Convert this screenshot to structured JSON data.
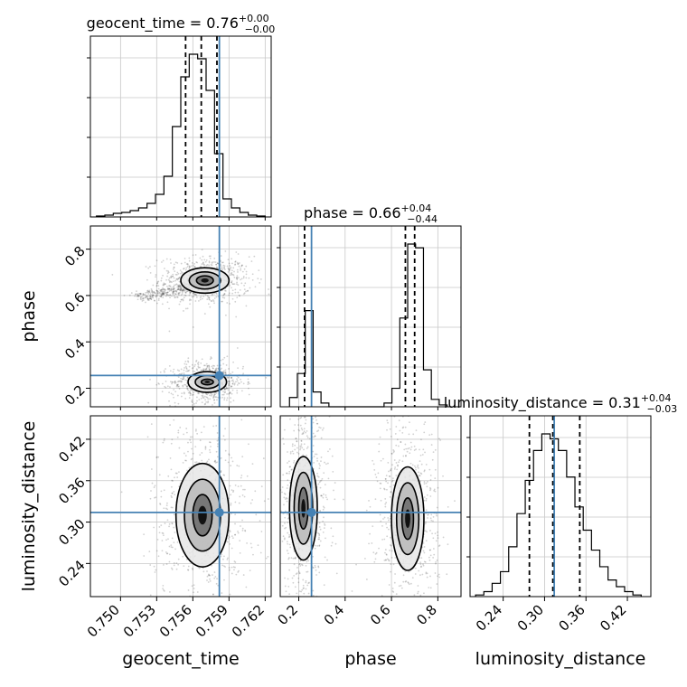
{
  "chart_data": {
    "type": "corner",
    "parameters": [
      "geocent_time",
      "phase",
      "luminosity_distance"
    ],
    "axis_labels": {
      "geocent_time": "geocent_time",
      "phase": "phase",
      "luminosity_distance": "luminosity_distance"
    },
    "ranges": {
      "geocent_time": [
        0.7475,
        0.7625
      ],
      "phase": [
        0.12,
        0.9
      ],
      "luminosity_distance": [
        0.192,
        0.454
      ]
    },
    "ticks": {
      "geocent_time": [
        "0.750",
        "0.753",
        "0.756",
        "0.759",
        "0.762"
      ],
      "phase": [
        "0.2",
        "0.4",
        "0.6",
        "0.8"
      ],
      "luminosity_distance": [
        "0.24",
        "0.30",
        "0.36",
        "0.42"
      ]
    },
    "truths": {
      "geocent_time": 0.7582,
      "phase": 0.255,
      "luminosity_distance": 0.314
    },
    "truth_color": "#4682b4",
    "titles": [
      {
        "param": "geocent_time",
        "text": "geocent_time = 0.76",
        "plus": "+0.00",
        "minus": "−0.00"
      },
      {
        "param": "phase",
        "text": "phase = 0.66",
        "plus": "+0.04",
        "minus": "−0.44"
      },
      {
        "param": "luminosity_distance",
        "text": "luminosity_distance = 0.31",
        "plus": "+0.04",
        "minus": "−0.03"
      }
    ],
    "quantiles": {
      "geocent_time": [
        0.7554,
        0.7567,
        0.758
      ],
      "phase": [
        0.225,
        0.66,
        0.7
      ],
      "luminosity_distance": [
        0.278,
        0.312,
        0.351
      ]
    },
    "histograms": {
      "geocent_time": {
        "edges": [
          0.748,
          0.7487,
          0.7494,
          0.7501,
          0.7508,
          0.7515,
          0.7522,
          0.7529,
          0.7536,
          0.7543,
          0.755,
          0.7557,
          0.7564,
          0.7571,
          0.7578,
          0.7585,
          0.7592,
          0.7599,
          0.7606,
          0.7613,
          0.762
        ],
        "counts": [
          1,
          2,
          4,
          5,
          7,
          10,
          15,
          25,
          45,
          100,
          155,
          180,
          175,
          140,
          70,
          20,
          10,
          5,
          2,
          1
        ]
      },
      "phase": {
        "edges": [
          0.16,
          0.194,
          0.228,
          0.262,
          0.296,
          0.33,
          0.364,
          0.398,
          0.432,
          0.466,
          0.5,
          0.534,
          0.568,
          0.602,
          0.636,
          0.67,
          0.704,
          0.738,
          0.772,
          0.806,
          0.84
        ],
        "counts": [
          5,
          18,
          52,
          8,
          2,
          0,
          0,
          0,
          0,
          0,
          0,
          0,
          2,
          10,
          48,
          88,
          86,
          20,
          4,
          1
        ]
      },
      "luminosity_distance": {
        "edges": [
          0.2,
          0.212,
          0.224,
          0.236,
          0.248,
          0.26,
          0.272,
          0.284,
          0.296,
          0.308,
          0.32,
          0.332,
          0.344,
          0.356,
          0.368,
          0.38,
          0.392,
          0.404,
          0.416,
          0.428,
          0.44
        ],
        "counts": [
          1,
          3,
          8,
          15,
          30,
          50,
          70,
          88,
          98,
          95,
          88,
          72,
          54,
          40,
          28,
          18,
          10,
          6,
          3,
          1
        ]
      }
    },
    "pairs": [
      {
        "x": "geocent_time",
        "y": "phase",
        "modes": [
          {
            "cx": 0.757,
            "cy": 0.665,
            "levels": [
              [
                0.002,
                0.055
              ],
              [
                0.0013,
                0.037
              ],
              [
                0.0007,
                0.02
              ]
            ]
          },
          {
            "cx": 0.7572,
            "cy": 0.227,
            "levels": [
              [
                0.0016,
                0.045
              ],
              [
                0.001,
                0.028
              ],
              [
                0.0005,
                0.012
              ]
            ]
          }
        ],
        "streak": {
          "from": [
            0.7515,
            0.59
          ],
          "to": [
            0.7562,
            0.64
          ]
        }
      },
      {
        "x": "geocent_time",
        "y": "luminosity_distance",
        "modes": [
          {
            "cx": 0.7568,
            "cy": 0.31,
            "levels": [
              [
                0.0022,
                0.075
              ],
              [
                0.0015,
                0.052
              ],
              [
                0.0008,
                0.03
              ]
            ]
          }
        ]
      },
      {
        "x": "phase",
        "y": "luminosity_distance",
        "modes": [
          {
            "cx": 0.22,
            "cy": 0.32,
            "levels": [
              [
                0.06,
                0.075
              ],
              [
                0.04,
                0.052
              ],
              [
                0.02,
                0.03
              ]
            ]
          },
          {
            "cx": 0.67,
            "cy": 0.305,
            "levels": [
              [
                0.07,
                0.075
              ],
              [
                0.048,
                0.052
              ],
              [
                0.025,
                0.03
              ]
            ]
          }
        ]
      }
    ]
  }
}
